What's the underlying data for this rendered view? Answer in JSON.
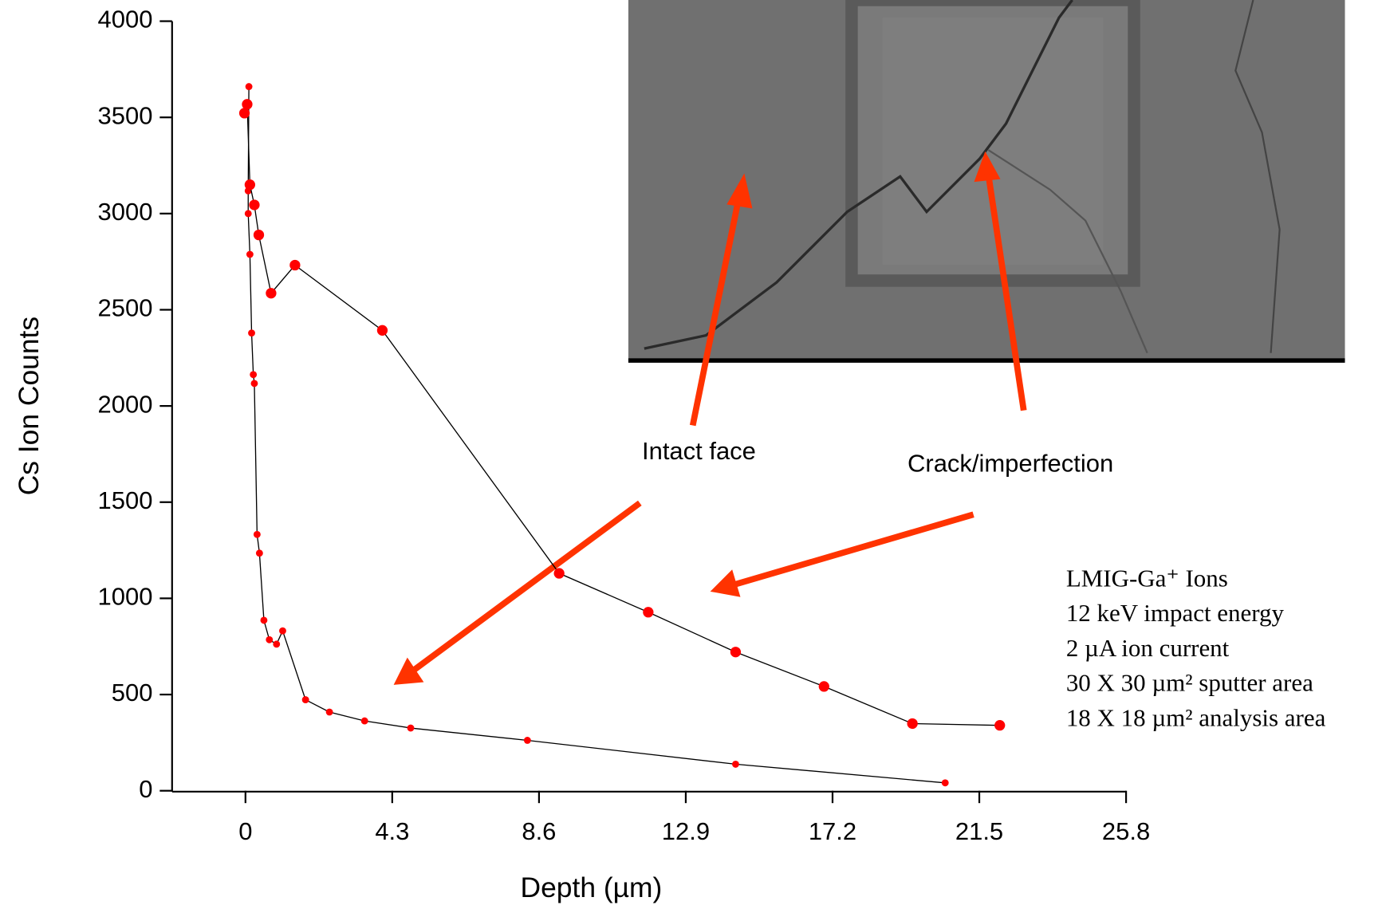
{
  "chart_data": {
    "type": "line",
    "xlabel": "Depth (µm)",
    "ylabel": "Cs Ion Counts",
    "xlim": [
      -2.15,
      25.8
    ],
    "ylim": [
      0,
      4000
    ],
    "xticks": [
      0,
      4.3,
      8.6,
      12.9,
      17.2,
      21.5,
      25.8
    ],
    "yticks": [
      0,
      500,
      1000,
      1500,
      2000,
      2500,
      3000,
      3500,
      4000
    ],
    "line_color": "#000000",
    "series": [
      {
        "name": "Intact face",
        "color": "#ff0000",
        "x": [
          0.1,
          0.08,
          0.08,
          0.13,
          0.18,
          0.23,
          0.26,
          0.34,
          0.41,
          0.54,
          0.7,
          0.91,
          1.09,
          1.76,
          2.46,
          3.49,
          4.84,
          8.26,
          14.36,
          20.5
        ],
        "values": [
          3660,
          3118,
          3000,
          2788,
          2379,
          2163,
          2117,
          1332,
          1235,
          886,
          785,
          762,
          831,
          473,
          409,
          363,
          326,
          262,
          138,
          41
        ]
      },
      {
        "name": "Crack/imperfection",
        "color": "#ff0000",
        "x": [
          -0.03,
          0.05,
          0.13,
          0.26,
          0.39,
          0.75,
          1.45,
          4.01,
          9.19,
          11.8,
          14.36,
          16.95,
          19.54,
          22.1
        ],
        "values": [
          3522,
          3568,
          3150,
          3045,
          2889,
          2586,
          2732,
          2393,
          1130,
          928,
          721,
          542,
          349,
          340
        ]
      }
    ],
    "annotations": [
      "LMIG-Ga⁺ Ions",
      "12 keV impact energy",
      "2 µA ion current",
      "30 X 30 µm² sputter area",
      "18 X 18 µm² analysis area"
    ]
  }
}
